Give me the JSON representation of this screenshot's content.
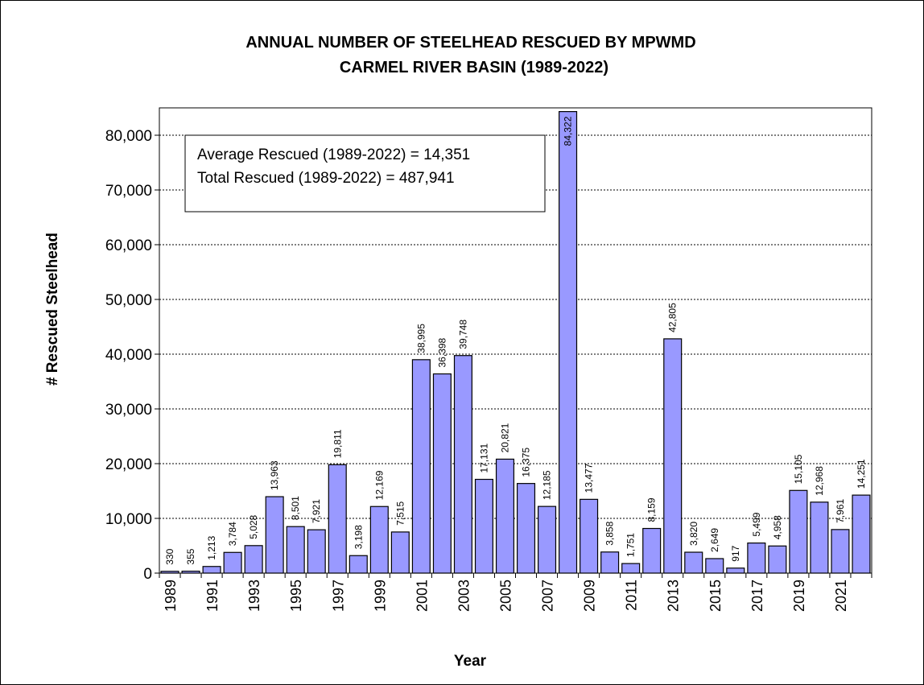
{
  "chart_data": {
    "type": "bar",
    "title_lines": [
      "ANNUAL NUMBER OF STEELHEAD RESCUED BY MPWMD",
      "CARMEL RIVER BASIN  (1989-2022)"
    ],
    "xlabel": "Year",
    "ylabel": "# Rescued  Steelhead",
    "ylim": [
      0,
      85000
    ],
    "yticks": [
      0,
      10000,
      20000,
      30000,
      40000,
      50000,
      60000,
      70000,
      80000
    ],
    "ytick_labels": [
      "0",
      "10,000",
      "20,000",
      "30,000",
      "40,000",
      "50,000",
      "60,000",
      "70,000",
      "80,000"
    ],
    "grid": "horizontal dashed",
    "categories": [
      "1989",
      "1990",
      "1991",
      "1992",
      "1993",
      "1994",
      "1995",
      "1996",
      "1997",
      "1998",
      "1999",
      "2000",
      "2001",
      "2002",
      "2003",
      "2004",
      "2005",
      "2006",
      "2007",
      "2008",
      "2009",
      "2010",
      "2011",
      "2012",
      "2013",
      "2014",
      "2015",
      "2016",
      "2017",
      "2018",
      "2019",
      "2020",
      "2021",
      "2022"
    ],
    "xtick_labels": [
      "1989",
      "",
      "1991",
      "",
      "1993",
      "",
      "1995",
      "",
      "1997",
      "",
      "1999",
      "",
      "2001",
      "",
      "2003",
      "",
      "2005",
      "",
      "2007",
      "",
      "2009",
      "",
      "2011",
      "",
      "2013",
      "",
      "2015",
      "",
      "2017",
      "",
      "2019",
      "",
      "2021",
      ""
    ],
    "values": [
      330,
      355,
      1213,
      3784,
      5028,
      13963,
      8501,
      7921,
      19811,
      3198,
      12169,
      7515,
      38995,
      36398,
      39748,
      17131,
      20821,
      16375,
      12185,
      84322,
      13477,
      3858,
      1751,
      8159,
      42805,
      3820,
      2649,
      917,
      5499,
      4958,
      15105,
      12968,
      7961,
      14251
    ],
    "value_labels": [
      "330",
      "355",
      "1,213",
      "3,784",
      "5,028",
      "13,963",
      "8,501",
      "7,921",
      "19,811",
      "3,198",
      "12,169",
      "7,515",
      "38,995",
      "36,398",
      "39,748",
      "17,131",
      "20,821",
      "16,375",
      "12,185",
      "84,322",
      "13,477",
      "3,858",
      "1,751",
      "8,159",
      "42,805",
      "3,820",
      "2,649",
      "917",
      "5,499",
      "4,958",
      "15,105",
      "12,968",
      "7,961",
      "14,251"
    ],
    "annotations": [
      "Average Rescued  (1989-2022) = 14,351",
      "Total Rescued  (1989-2022) = 487,941"
    ],
    "colors": {
      "bar_fill": "#9999ff",
      "bar_stroke": "#000000",
      "grid": "#000000"
    }
  }
}
